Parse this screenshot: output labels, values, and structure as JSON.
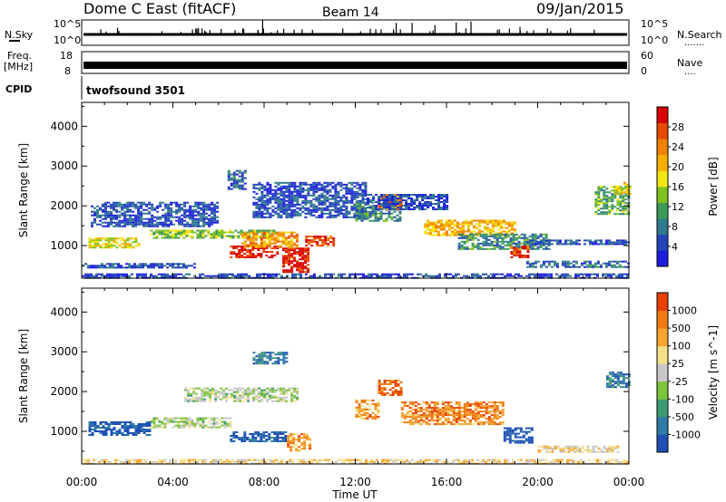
{
  "header": {
    "station": "Dome C East (fitACF)",
    "beam": "Beam 14",
    "date": "09/Jan/2015"
  },
  "noise_panel": {
    "left_label": "N.Sky",
    "left_ticks": [
      "10^5",
      "10^0"
    ],
    "right_label": "N.Search",
    "right_ticks": [
      "10^5",
      "10^0"
    ],
    "right_dots": "......."
  },
  "freq_panel": {
    "label_line1": "Freq.",
    "label_line2": "[MHz]",
    "left_ticks": [
      "18",
      "8"
    ],
    "right_ticks": [
      "60",
      "0"
    ],
    "right_label": "Nave",
    "right_dots": "...."
  },
  "cpid": {
    "label": "CPID",
    "value": "twofsound 3501"
  },
  "x_axis": {
    "label": "Time UT",
    "ticks": [
      "00:00",
      "04:00",
      "08:00",
      "12:00",
      "16:00",
      "20:00",
      "00:00"
    ]
  },
  "chart_data": [
    {
      "type": "heatmap",
      "title": "",
      "xlabel": "Time UT",
      "ylabel": "Slant Range [km]",
      "x_ticks": [
        "00:00",
        "04:00",
        "08:00",
        "12:00",
        "16:00",
        "20:00",
        "00:00"
      ],
      "y_ticks": [
        1000,
        2000,
        3000,
        4000
      ],
      "xlim_hours": [
        0,
        24
      ],
      "ylim_km": [
        180,
        4600
      ],
      "colorbar": {
        "label": "Power [dB]",
        "ticks": [
          "4",
          "8",
          "12",
          "16",
          "20",
          "24",
          "28"
        ],
        "colors": [
          "#1d1de0",
          "#2444b8",
          "#2f7a8c",
          "#3d9a5a",
          "#7fc21e",
          "#f4e612",
          "#f5b000",
          "#f08200",
          "#e84a00",
          "#d80000"
        ]
      },
      "regions": [
        {
          "t0": 0.0,
          "t1": 24.0,
          "r0": 200,
          "r1": 300,
          "level": 0.12
        },
        {
          "t0": 0.0,
          "t1": 5.0,
          "r0": 450,
          "r1": 560,
          "level": 0.15
        },
        {
          "t0": 0.3,
          "t1": 2.5,
          "r0": 950,
          "r1": 1200,
          "level": 0.55
        },
        {
          "t0": 0.4,
          "t1": 6.0,
          "r0": 1500,
          "r1": 2100,
          "level": 0.15
        },
        {
          "t0": 3.0,
          "t1": 8.5,
          "r0": 1200,
          "r1": 1400,
          "level": 0.45
        },
        {
          "t0": 6.4,
          "t1": 7.2,
          "r0": 2400,
          "r1": 2900,
          "level": 0.2
        },
        {
          "t0": 6.5,
          "t1": 8.6,
          "r0": 700,
          "r1": 1000,
          "level": 0.95
        },
        {
          "t0": 8.8,
          "t1": 9.9,
          "r0": 350,
          "r1": 950,
          "level": 0.95
        },
        {
          "t0": 7.0,
          "t1": 9.5,
          "r0": 950,
          "r1": 1350,
          "level": 0.7
        },
        {
          "t0": 7.5,
          "t1": 12.5,
          "r0": 1700,
          "r1": 2600,
          "level": 0.15
        },
        {
          "t0": 9.8,
          "t1": 11.0,
          "r0": 1000,
          "r1": 1250,
          "level": 0.85
        },
        {
          "t0": 12.0,
          "t1": 14.0,
          "r0": 1600,
          "r1": 2100,
          "level": 0.3
        },
        {
          "t0": 13.0,
          "t1": 14.0,
          "r0": 1900,
          "r1": 2300,
          "level": 0.75
        },
        {
          "t0": 12.5,
          "t1": 16.0,
          "r0": 1900,
          "r1": 2300,
          "level": 0.15
        },
        {
          "t0": 15.0,
          "t1": 19.0,
          "r0": 1250,
          "r1": 1650,
          "level": 0.65
        },
        {
          "t0": 16.5,
          "t1": 20.5,
          "r0": 900,
          "r1": 1300,
          "level": 0.3
        },
        {
          "t0": 18.8,
          "t1": 19.6,
          "r0": 700,
          "r1": 1000,
          "level": 0.9
        },
        {
          "t0": 19.5,
          "t1": 24.0,
          "r0": 1050,
          "r1": 1150,
          "level": 0.15
        },
        {
          "t0": 19.5,
          "t1": 24.0,
          "r0": 480,
          "r1": 620,
          "level": 0.2
        },
        {
          "t0": 22.5,
          "t1": 24.0,
          "r0": 1800,
          "r1": 2500,
          "level": 0.4
        },
        {
          "t0": 23.4,
          "t1": 24.0,
          "r0": 2300,
          "r1": 2600,
          "level": 0.6
        }
      ]
    },
    {
      "type": "heatmap",
      "title": "",
      "xlabel": "Time UT",
      "ylabel": "Slant Range [km]",
      "x_ticks": [
        "00:00",
        "04:00",
        "08:00",
        "12:00",
        "16:00",
        "20:00",
        "00:00"
      ],
      "y_ticks": [
        1000,
        2000,
        3000,
        4000
      ],
      "xlim_hours": [
        0,
        24
      ],
      "ylim_km": [
        180,
        4600
      ],
      "colorbar": {
        "label": "Velocity [m s^-1]",
        "ticks": [
          "1000",
          "500",
          "100",
          "25",
          "-25",
          "-100",
          "-500",
          "-1000"
        ],
        "colors": [
          "#1d4fb5",
          "#2f7aa8",
          "#3e9a72",
          "#7cc43a",
          "#c8c8c8",
          "#f5e08a",
          "#f5a530",
          "#f07a10",
          "#e84000"
        ]
      },
      "regions": [
        {
          "t0": 0.0,
          "t1": 24.0,
          "r0": 200,
          "r1": 300,
          "level": 0.62
        },
        {
          "t0": 0.3,
          "t1": 3.0,
          "r0": 900,
          "r1": 1250,
          "level": 0.05
        },
        {
          "t0": 3.0,
          "t1": 6.5,
          "r0": 1100,
          "r1": 1350,
          "level": 0.45
        },
        {
          "t0": 4.5,
          "t1": 9.5,
          "r0": 1750,
          "r1": 2100,
          "level": 0.45
        },
        {
          "t0": 6.5,
          "t1": 9.0,
          "r0": 750,
          "r1": 1000,
          "level": 0.08
        },
        {
          "t0": 9.0,
          "t1": 10.0,
          "r0": 500,
          "r1": 950,
          "level": 0.75
        },
        {
          "t0": 7.5,
          "t1": 9.0,
          "r0": 2700,
          "r1": 3000,
          "level": 0.2
        },
        {
          "t0": 12.0,
          "t1": 13.0,
          "r0": 1300,
          "r1": 1800,
          "level": 0.75
        },
        {
          "t0": 13.0,
          "t1": 14.0,
          "r0": 1900,
          "r1": 2300,
          "level": 0.92
        },
        {
          "t0": 14.0,
          "t1": 18.5,
          "r0": 1200,
          "r1": 1750,
          "level": 0.8
        },
        {
          "t0": 18.5,
          "t1": 19.8,
          "r0": 700,
          "r1": 1100,
          "level": 0.05
        },
        {
          "t0": 20.0,
          "t1": 23.5,
          "r0": 480,
          "r1": 640,
          "level": 0.6
        },
        {
          "t0": 23.0,
          "t1": 24.0,
          "r0": 2100,
          "r1": 2500,
          "level": 0.15
        }
      ]
    }
  ]
}
